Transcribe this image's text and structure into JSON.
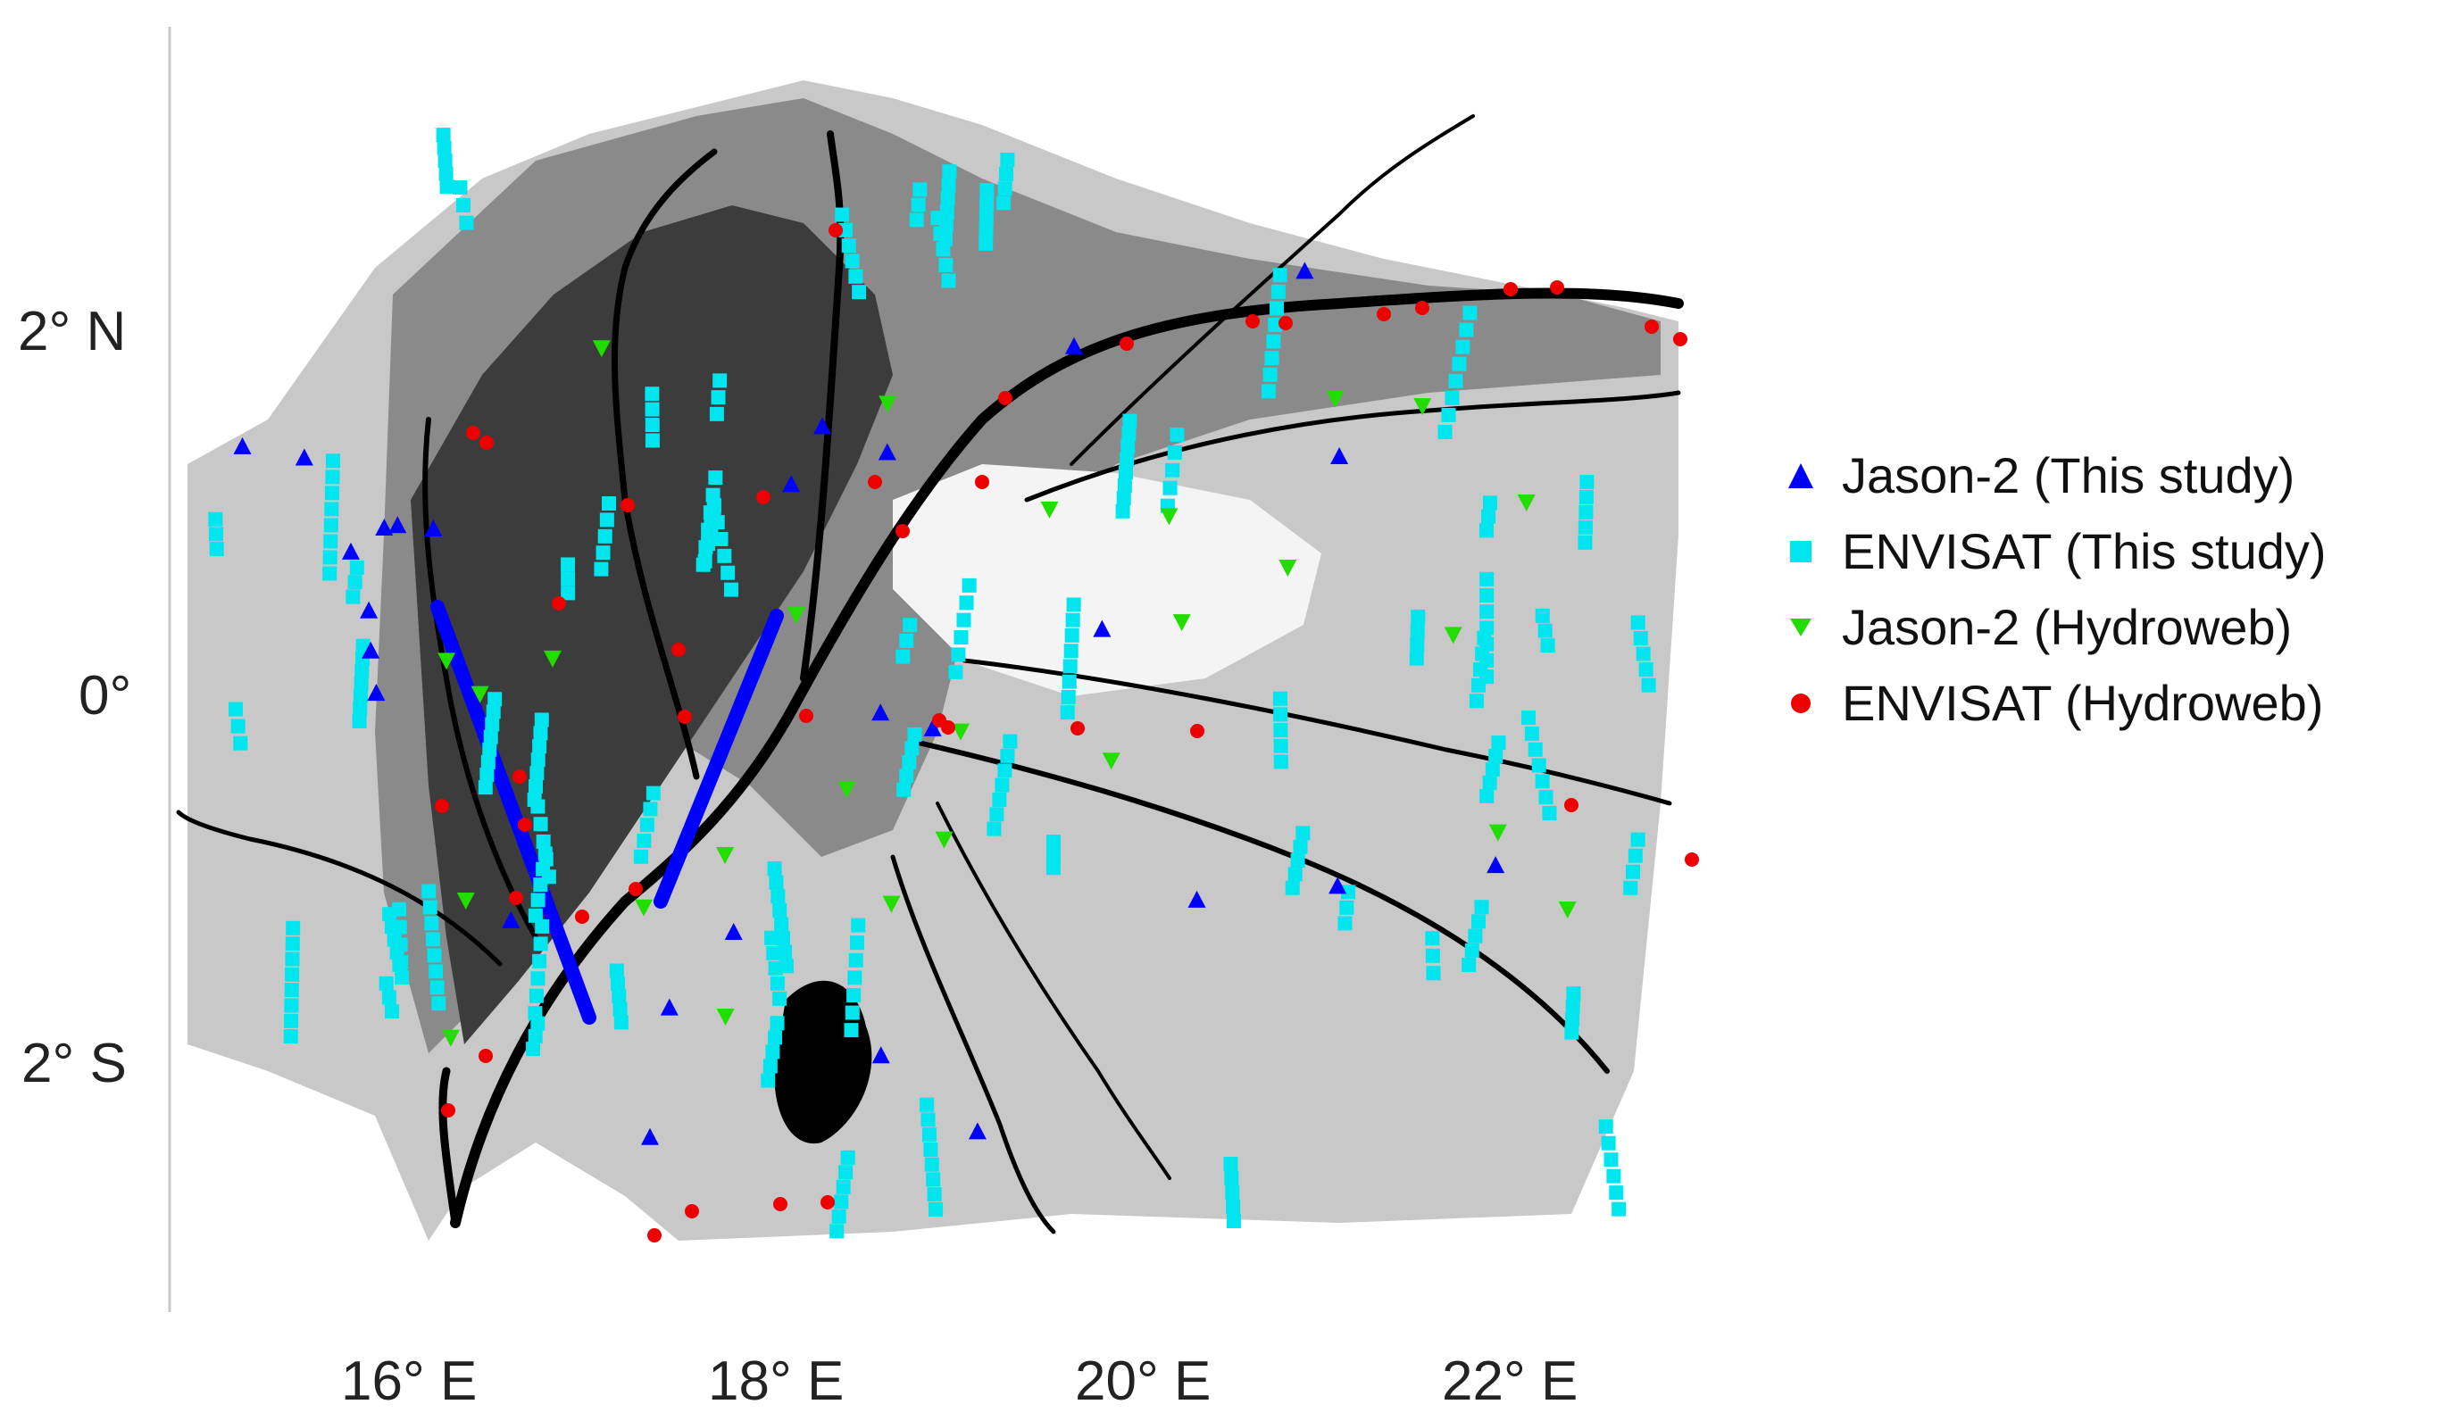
{
  "map": {
    "axes": {
      "lon_ticks": [
        "16° E",
        "18° E",
        "20° E",
        "22° E"
      ],
      "lat_ticks": [
        "2° N",
        "0°",
        "2° S"
      ]
    },
    "colors": {
      "jason_this": "#0000ff",
      "envisat_this": "#00e5ee",
      "jason_hydroweb": "#22dd00",
      "envisat_hydroweb": "#ee0000",
      "terrain_dark": "#3c3c3c",
      "terrain_mid": "#8a8a8a",
      "terrain_light": "#c8c8c8",
      "water": "#000000"
    },
    "legend": [
      {
        "key": "jason_this",
        "label": "Jason-2 (This study)",
        "symbol": "triangle-up"
      },
      {
        "key": "envisat_this",
        "label": "ENVISAT (This study)",
        "symbol": "square"
      },
      {
        "key": "jason_hydroweb",
        "label": "Jason-2 (Hydroweb)",
        "symbol": "triangle-down"
      },
      {
        "key": "envisat_hydroweb",
        "label": "ENVISAT (Hydroweb)",
        "symbol": "circle"
      }
    ]
  }
}
